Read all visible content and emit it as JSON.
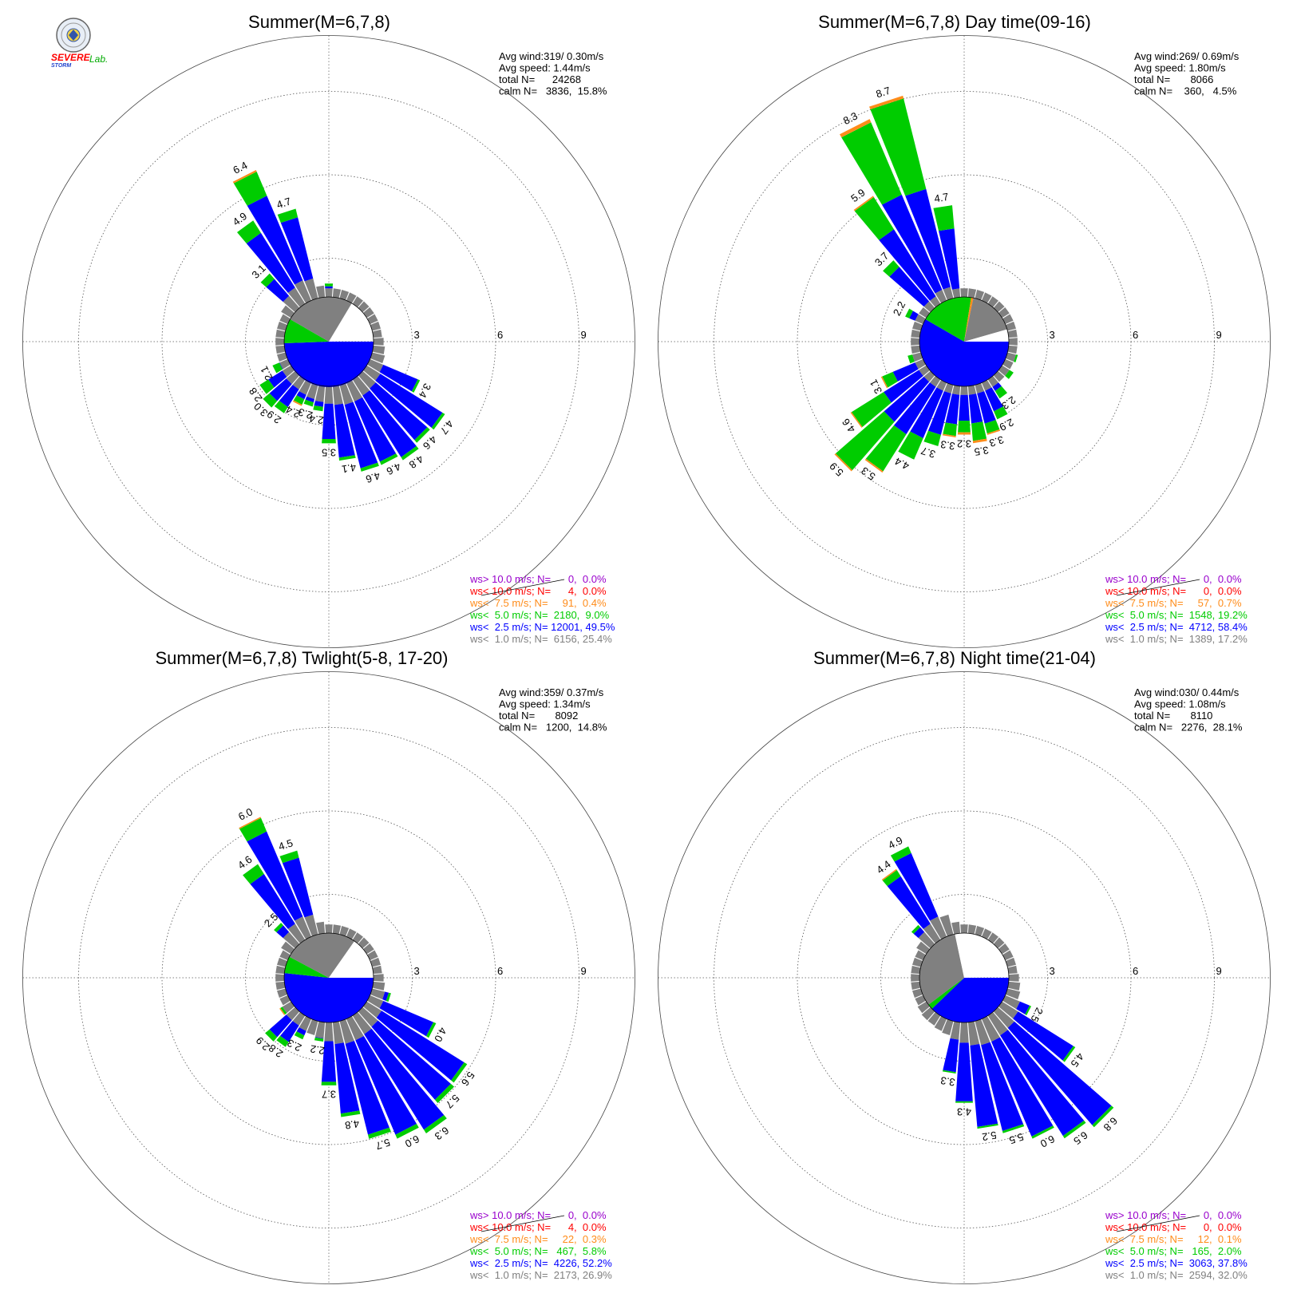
{
  "logo": {
    "text_top": "SEVERE",
    "text_bottom": "STORM",
    "text_lab": "Lab."
  },
  "colors": {
    "gt10": "#9900cc",
    "lt10": "#ff0000",
    "lt75": "#ff8c1a",
    "lt5": "#00cc00",
    "lt25": "#0000ff",
    "lt1": "#808080",
    "grid": "#555555"
  },
  "ring_labels": [
    "3",
    "6",
    "9"
  ],
  "chart_data": [
    {
      "type": "windrose",
      "title": "Summer(M=6,7,8)",
      "stats": {
        "avg_wind": "Avg wind:319/ 0.30m/s",
        "avg_speed": "Avg speed: 1.44m/s",
        "total": "total N=      24268",
        "calm": "calm N=   3836,  15.8%"
      },
      "legend": [
        "ws> 10.0 m/s; N=      0,  0.0%",
        "ws< 10.0 m/s; N=      4,  0.0%",
        "ws<  7.5 m/s; N=     91,  0.4%",
        "ws<  5.0 m/s; N=  2180,  9.0%",
        "ws<  2.5 m/s; N= 12001, 49.5%",
        "ws<  1.0 m/s; N=  6156, 25.4%"
      ],
      "pie": [
        {
          "class": "lt25",
          "deg": 178
        },
        {
          "class": "lt5",
          "deg": 32
        },
        {
          "class": "lt1",
          "deg": 91
        },
        {
          "class": "calm",
          "deg": 57
        }
      ],
      "totals": [
        2.0,
        1.5,
        1.0,
        0.8,
        0.8,
        0.6,
        0.6,
        0.7,
        0.8,
        0.8,
        1.4,
        1.7,
        1.5,
        3.4,
        4.7,
        4.6,
        4.8,
        4.6,
        4.6,
        4.1,
        3.5,
        2.4,
        2.3,
        2.4,
        2.9,
        3.0,
        2.8,
        2.1,
        1.0,
        0.8,
        0.8,
        0.6,
        0.5,
        1.0,
        1.8,
        3.1,
        4.9,
        6.4,
        4.7,
        1.5
      ],
      "gray": [
        0.3,
        0.3,
        0.3,
        0.3,
        0.3,
        0.3,
        0.3,
        0.3,
        0.3,
        0.3,
        0.35,
        0.4,
        0.45,
        0.5,
        0.55,
        0.6,
        0.65,
        0.7,
        0.7,
        0.65,
        0.6,
        0.55,
        0.5,
        0.45,
        0.4,
        0.4,
        0.35,
        0.3,
        0.3,
        0.3,
        0.3,
        0.3,
        0.3,
        0.3,
        0.4,
        0.55,
        0.65,
        0.75,
        0.7,
        0.4
      ],
      "green": [
        0.1,
        0.08,
        0.05,
        0.05,
        0.05,
        0.05,
        0.05,
        0.05,
        0.05,
        0.05,
        0.06,
        0.06,
        0.06,
        0.08,
        0.1,
        0.12,
        0.12,
        0.12,
        0.12,
        0.1,
        0.15,
        0.15,
        0.15,
        0.2,
        0.25,
        0.3,
        0.35,
        0.25,
        0.15,
        0.05,
        0.05,
        0.05,
        0.05,
        0.08,
        0.1,
        0.25,
        0.5,
        0.9,
        0.3,
        0.05
      ],
      "orange": [
        0,
        0,
        0,
        0,
        0,
        0,
        0,
        0,
        0,
        0,
        0,
        0,
        0,
        0,
        0,
        0,
        0,
        0,
        0,
        0,
        0,
        0,
        0,
        0.05,
        0,
        0,
        0,
        0,
        0,
        0,
        0,
        0,
        0,
        0,
        0,
        0,
        0,
        0.06,
        0,
        0
      ],
      "labels": [
        {
          "i": 13,
          "t": "3.4"
        },
        {
          "i": 14,
          "t": "4.7"
        },
        {
          "i": 15,
          "t": "4.6"
        },
        {
          "i": 16,
          "t": "4.8"
        },
        {
          "i": 17,
          "t": "4.6"
        },
        {
          "i": 18,
          "t": "4.6"
        },
        {
          "i": 19,
          "t": "4.1"
        },
        {
          "i": 20,
          "t": "3.5"
        },
        {
          "i": 21,
          "t": "2.4"
        },
        {
          "i": 22,
          "t": "2.3"
        },
        {
          "i": 23,
          "t": "2.4"
        },
        {
          "i": 24,
          "t": "2.9"
        },
        {
          "i": 25,
          "t": "3.0"
        },
        {
          "i": 26,
          "t": "2.8"
        },
        {
          "i": 27,
          "t": "2.1"
        },
        {
          "i": 35,
          "t": "3.1"
        },
        {
          "i": 36,
          "t": "4.9"
        },
        {
          "i": 37,
          "t": "6.4"
        },
        {
          "i": 38,
          "t": "4.7"
        }
      ]
    },
    {
      "type": "windrose",
      "title": "Summer(M=6,7,8) Day time(09-16)",
      "stats": {
        "avg_wind": "Avg wind:269/ 0.69m/s",
        "avg_speed": "Avg speed: 1.80m/s",
        "total": "total N=       8066",
        "calm": "calm N=    360,   4.5%"
      },
      "legend": [
        "ws> 10.0 m/s; N=      0,  0.0%",
        "ws< 10.0 m/s; N=      0,  0.0%",
        "ws<  7.5 m/s; N=     57,  0.7%",
        "ws<  5.0 m/s; N=  1548, 19.2%",
        "ws<  2.5 m/s; N=  4712, 58.4%",
        "ws<  1.0 m/s; N=  1389, 17.2%"
      ],
      "pie": [
        {
          "class": "lt25",
          "deg": 210
        },
        {
          "class": "lt5",
          "deg": 69
        },
        {
          "class": "lt75",
          "deg": 3
        },
        {
          "class": "lt1",
          "deg": 62
        },
        {
          "class": "calm",
          "deg": 16
        }
      ],
      "totals": [
        1.5,
        1.3,
        1.1,
        1.0,
        0.9,
        0.8,
        0.7,
        0.7,
        0.7,
        0.7,
        1.4,
        1.6,
        1.9,
        1.8,
        2.0,
        1.7,
        2.3,
        2.9,
        3.3,
        3.5,
        3.2,
        3.3,
        3.7,
        4.4,
        5.3,
        5.9,
        4.6,
        3.1,
        2.0,
        1.6,
        1.5,
        1.4,
        1.0,
        2.2,
        1.5,
        3.7,
        5.9,
        8.3,
        8.7,
        4.7
      ],
      "gray": [
        0.3,
        0.3,
        0.3,
        0.3,
        0.3,
        0.3,
        0.3,
        0.3,
        0.3,
        0.3,
        0.3,
        0.3,
        0.3,
        0.3,
        0.3,
        0.3,
        0.3,
        0.3,
        0.3,
        0.3,
        0.3,
        0.3,
        0.3,
        0.3,
        0.3,
        0.3,
        0.3,
        0.3,
        0.3,
        0.3,
        0.3,
        0.3,
        0.3,
        0.3,
        0.3,
        0.3,
        0.3,
        0.4,
        0.4,
        0.3
      ],
      "green": [
        0.15,
        0.12,
        0.1,
        0.1,
        0.1,
        0.1,
        0.1,
        0.1,
        0.1,
        0.1,
        0.15,
        0.2,
        0.2,
        0.2,
        0.2,
        0.25,
        0.3,
        0.3,
        0.35,
        0.6,
        0.4,
        0.4,
        0.4,
        0.8,
        1.5,
        2.2,
        1.3,
        0.4,
        0.2,
        0.15,
        0.15,
        0.1,
        0.1,
        0.15,
        0.1,
        0.3,
        1.3,
        2.7,
        3.2,
        0.8
      ],
      "orange": [
        0.05,
        0,
        0,
        0,
        0,
        0,
        0,
        0,
        0,
        0,
        0,
        0,
        0,
        0,
        0,
        0,
        0,
        0,
        0.05,
        0.08,
        0.08,
        0.05,
        0,
        0,
        0.05,
        0.05,
        0.04,
        0.04,
        0,
        0,
        0,
        0,
        0,
        0,
        0,
        0,
        0.05,
        0.12,
        0.1,
        0
      ],
      "labels": [
        {
          "i": 16,
          "t": "2.3"
        },
        {
          "i": 17,
          "t": "2.9"
        },
        {
          "i": 18,
          "t": "3.3"
        },
        {
          "i": 19,
          "t": "3.5"
        },
        {
          "i": 20,
          "t": "3.2"
        },
        {
          "i": 21,
          "t": "3.3"
        },
        {
          "i": 22,
          "t": "3.7"
        },
        {
          "i": 23,
          "t": "4.4"
        },
        {
          "i": 24,
          "t": "5.3"
        },
        {
          "i": 25,
          "t": "5.9"
        },
        {
          "i": 26,
          "t": "4.6"
        },
        {
          "i": 27,
          "t": "3.1"
        },
        {
          "i": 33,
          "t": "2.2"
        },
        {
          "i": 35,
          "t": "3.7"
        },
        {
          "i": 36,
          "t": "5.9"
        },
        {
          "i": 37,
          "t": "8.3"
        },
        {
          "i": 38,
          "t": "8.7"
        },
        {
          "i": 39,
          "t": "4.7"
        }
      ]
    },
    {
      "type": "windrose",
      "title": "Summer(M=6,7,8) Twlight(5-8, 17-20)",
      "stats": {
        "avg_wind": "Avg wind:359/ 0.37m/s",
        "avg_speed": "Avg speed: 1.34m/s",
        "total": "total N=       8092",
        "calm": "calm N=   1200,  14.8%"
      },
      "legend": [
        "ws> 10.0 m/s; N=      0,  0.0%",
        "ws< 10.0 m/s; N=      4,  0.0%",
        "ws<  7.5 m/s; N=     22,  0.3%",
        "ws<  5.0 m/s; N=   467,  5.8%",
        "ws<  2.5 m/s; N=  4226, 52.2%",
        "ws<  1.0 m/s; N=  2173, 26.9%"
      ],
      "pie": [
        {
          "class": "lt25",
          "deg": 186
        },
        {
          "class": "lt5",
          "deg": 22
        },
        {
          "class": "lt1",
          "deg": 97
        },
        {
          "class": "calm",
          "deg": 55
        }
      ],
      "totals": [
        1.5,
        1.3,
        1.1,
        0.9,
        0.8,
        0.7,
        0.7,
        0.6,
        0.6,
        0.6,
        1.5,
        1.8,
        2.2,
        4.0,
        5.6,
        5.7,
        6.3,
        6.0,
        5.7,
        4.8,
        3.7,
        2.2,
        2.0,
        2.3,
        2.8,
        2.9,
        2.0,
        1.5,
        0.8,
        0.7,
        0.7,
        0.6,
        0.6,
        0.8,
        1.6,
        2.5,
        4.6,
        6.0,
        4.5,
        1.2
      ],
      "gray": [
        0.3,
        0.3,
        0.3,
        0.3,
        0.3,
        0.3,
        0.3,
        0.3,
        0.3,
        0.3,
        0.35,
        0.4,
        0.45,
        0.5,
        0.6,
        0.7,
        0.75,
        0.8,
        0.8,
        0.75,
        0.65,
        0.55,
        0.5,
        0.45,
        0.4,
        0.4,
        0.35,
        0.3,
        0.3,
        0.3,
        0.3,
        0.3,
        0.3,
        0.3,
        0.4,
        0.55,
        0.65,
        0.75,
        0.7,
        0.4
      ],
      "green": [
        0.1,
        0.08,
        0.05,
        0.05,
        0.05,
        0.05,
        0.05,
        0.05,
        0.05,
        0.05,
        0.05,
        0.08,
        0.08,
        0.1,
        0.12,
        0.15,
        0.15,
        0.15,
        0.15,
        0.12,
        0.12,
        0.1,
        0.1,
        0.15,
        0.2,
        0.2,
        0.15,
        0.1,
        0.05,
        0.05,
        0.05,
        0.05,
        0.05,
        0.05,
        0.08,
        0.12,
        0.4,
        0.5,
        0.25,
        0.05
      ],
      "orange": [
        0,
        0,
        0,
        0,
        0,
        0,
        0,
        0,
        0,
        0,
        0,
        0,
        0,
        0,
        0,
        0,
        0,
        0,
        0,
        0,
        0,
        0,
        0,
        0,
        0,
        0,
        0.04,
        0.04,
        0,
        0,
        0,
        0,
        0,
        0,
        0,
        0,
        0,
        0.04,
        0,
        0
      ],
      "labels": [
        {
          "i": 13,
          "t": "4.0"
        },
        {
          "i": 14,
          "t": "5.6"
        },
        {
          "i": 15,
          "t": "5.7"
        },
        {
          "i": 16,
          "t": "6.3"
        },
        {
          "i": 17,
          "t": "6.0"
        },
        {
          "i": 18,
          "t": "5.7"
        },
        {
          "i": 19,
          "t": "4.8"
        },
        {
          "i": 20,
          "t": "3.7"
        },
        {
          "i": 21,
          "t": "2.2"
        },
        {
          "i": 23,
          "t": "2.3"
        },
        {
          "i": 24,
          "t": "2.8"
        },
        {
          "i": 25,
          "t": "2.9"
        },
        {
          "i": 35,
          "t": "2.5"
        },
        {
          "i": 36,
          "t": "4.6"
        },
        {
          "i": 37,
          "t": "6.0"
        },
        {
          "i": 38,
          "t": "4.5"
        }
      ]
    },
    {
      "type": "windrose",
      "title": "Summer(M=6,7,8) Night time(21-04)",
      "stats": {
        "avg_wind": "Avg wind:030/ 0.44m/s",
        "avg_speed": "Avg speed: 1.08m/s",
        "total": "total N=       8110",
        "calm": "calm N=   2276,  28.1%"
      },
      "legend": [
        "ws> 10.0 m/s; N=      0,  0.0%",
        "ws< 10.0 m/s; N=      0,  0.0%",
        "ws<  7.5 m/s; N=     12,  0.1%",
        "ws<  5.0 m/s; N=   165,  2.0%",
        "ws<  2.5 m/s; N=  3063, 37.8%",
        "ws<  1.0 m/s; N=  2594, 32.0%"
      ],
      "pie": [
        {
          "class": "lt25",
          "deg": 136
        },
        {
          "class": "lt5",
          "deg": 7
        },
        {
          "class": "lt1",
          "deg": 115
        },
        {
          "class": "calm",
          "deg": 101
        }
      ],
      "totals": [
        1.1,
        1.0,
        0.9,
        0.9,
        0.8,
        0.8,
        0.8,
        0.7,
        0.8,
        0.8,
        1.0,
        1.3,
        1.6,
        2.5,
        4.5,
        6.8,
        6.5,
        6.0,
        5.5,
        5.2,
        4.3,
        3.3,
        2.0,
        1.9,
        1.8,
        1.7,
        1.6,
        1.2,
        0.9,
        0.8,
        0.8,
        0.7,
        0.7,
        1.0,
        1.6,
        2.4,
        4.4,
        4.9,
        1.4,
        1.1
      ],
      "gray": [
        0.3,
        0.3,
        0.3,
        0.3,
        0.3,
        0.3,
        0.3,
        0.3,
        0.3,
        0.3,
        0.35,
        0.4,
        0.45,
        0.55,
        0.65,
        0.75,
        0.8,
        0.85,
        0.85,
        0.8,
        0.7,
        0.6,
        0.5,
        0.45,
        0.4,
        0.4,
        0.35,
        0.3,
        0.3,
        0.3,
        0.3,
        0.3,
        0.3,
        0.3,
        0.4,
        0.55,
        0.65,
        0.75,
        0.7,
        0.4
      ],
      "green": [
        0.05,
        0.05,
        0.05,
        0.05,
        0.05,
        0.05,
        0.05,
        0.05,
        0.05,
        0.05,
        0.05,
        0.05,
        0.05,
        0.06,
        0.08,
        0.1,
        0.1,
        0.08,
        0.08,
        0.06,
        0.05,
        0.05,
        0.05,
        0.05,
        0.05,
        0.05,
        0.05,
        0.05,
        0.05,
        0.05,
        0.05,
        0.05,
        0.05,
        0.05,
        0.05,
        0.1,
        0.25,
        0.25,
        0.05,
        0.05
      ],
      "orange": [
        0,
        0,
        0,
        0,
        0,
        0,
        0,
        0,
        0,
        0,
        0,
        0,
        0,
        0,
        0,
        0,
        0,
        0,
        0,
        0,
        0,
        0,
        0,
        0,
        0,
        0,
        0,
        0,
        0,
        0,
        0,
        0,
        0,
        0,
        0,
        0,
        0.04,
        0,
        0,
        0
      ],
      "labels": [
        {
          "i": 13,
          "t": "2.5"
        },
        {
          "i": 14,
          "t": "4.5"
        },
        {
          "i": 15,
          "t": "6.8"
        },
        {
          "i": 16,
          "t": "6.5"
        },
        {
          "i": 17,
          "t": "6.0"
        },
        {
          "i": 18,
          "t": "5.5"
        },
        {
          "i": 19,
          "t": "5.2"
        },
        {
          "i": 20,
          "t": "4.3"
        },
        {
          "i": 21,
          "t": "3.3"
        },
        {
          "i": 36,
          "t": "4.4"
        },
        {
          "i": 37,
          "t": "4.9"
        }
      ]
    }
  ]
}
